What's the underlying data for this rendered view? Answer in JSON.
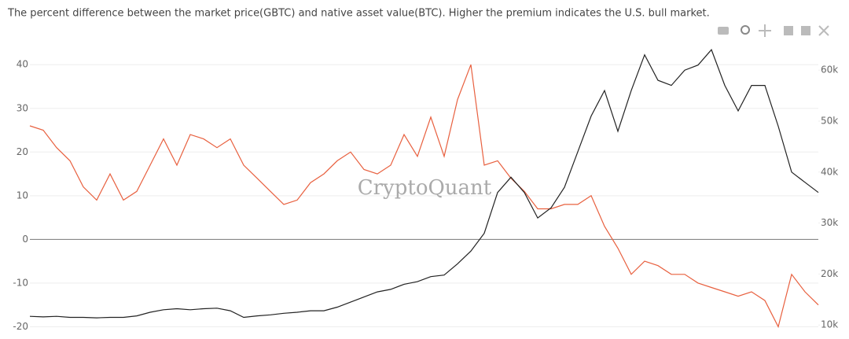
{
  "chart_data": {
    "type": "line",
    "subtitle": "The percent difference between the market price(GBTC) and native asset value(BTC). Higher the premium indicates the U.S. bull market.",
    "watermark": "CryptoQuant",
    "ylim": [
      -21,
      44
    ],
    "yticks": [
      -20,
      -10,
      0,
      10,
      20,
      30,
      40
    ],
    "y2lim": [
      8800,
      64500
    ],
    "y2ticks": [
      {
        "value": 10000,
        "label": "10k"
      },
      {
        "value": 20000,
        "label": "20k"
      },
      {
        "value": 30000,
        "label": "30k"
      },
      {
        "value": 40000,
        "label": "40k"
      },
      {
        "value": 50000,
        "label": "50k"
      },
      {
        "value": 60000,
        "label": "60k"
      }
    ],
    "grid": true,
    "series": [
      {
        "color": "#e8603f",
        "values": [
          26,
          25,
          21,
          18,
          12,
          9,
          15,
          9,
          11,
          17,
          23,
          17,
          24,
          23,
          21,
          23,
          17,
          14,
          11,
          8,
          9,
          13,
          15,
          18,
          20,
          16,
          15,
          17,
          24,
          19,
          28,
          19,
          32,
          40,
          17,
          18,
          14,
          11,
          7,
          7,
          8,
          8,
          10,
          3,
          -2,
          -8,
          -5,
          -6,
          -8,
          -8,
          -10,
          -11,
          -12,
          -13,
          -12,
          -14,
          -20,
          -8,
          -12,
          -15
        ]
      },
      {
        "color": "#222222",
        "axis": "y2",
        "values": [
          11700,
          11600,
          11700,
          11500,
          11500,
          11400,
          11500,
          11500,
          11800,
          12500,
          13000,
          13200,
          13000,
          13200,
          13300,
          12800,
          11500,
          11800,
          12000,
          12300,
          12500,
          12800,
          12800,
          13500,
          14500,
          15500,
          16500,
          17000,
          18000,
          18500,
          19500,
          19800,
          22000,
          24500,
          28000,
          36000,
          39000,
          36000,
          31000,
          33000,
          37000,
          44000,
          51000,
          56000,
          48000,
          56000,
          63000,
          58000,
          57000,
          60000,
          61000,
          64000,
          57000,
          52000,
          57000,
          57000,
          49000,
          40000,
          38000,
          36000
        ]
      }
    ]
  }
}
